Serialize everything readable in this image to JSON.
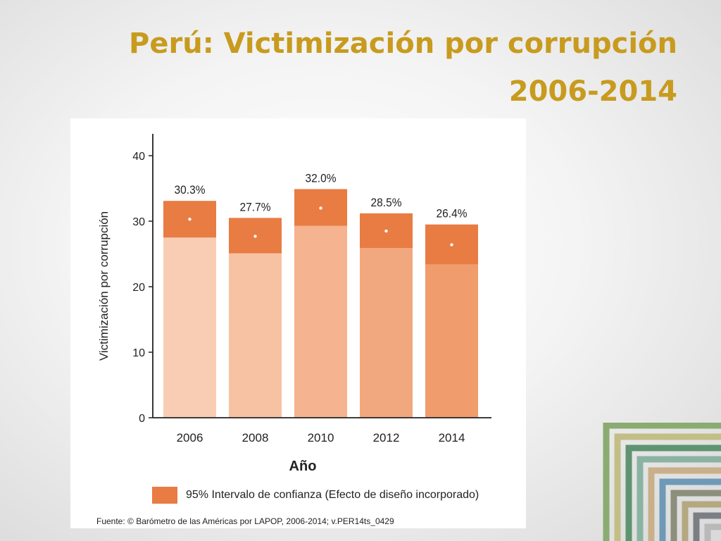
{
  "slide": {
    "title_line1": "Perú: Victimización por corrupción",
    "title_line2": "2006-2014"
  },
  "chart_data": {
    "type": "bar",
    "categories": [
      "2006",
      "2008",
      "2010",
      "2012",
      "2014"
    ],
    "values": [
      30.3,
      27.7,
      32.0,
      28.5,
      26.4
    ],
    "value_labels": [
      "30.3%",
      "27.7%",
      "32.0%",
      "28.5%",
      "26.4%"
    ],
    "ci_lower": [
      27.5,
      25.1,
      29.3,
      25.9,
      23.4
    ],
    "ci_upper": [
      33.1,
      30.5,
      34.9,
      31.2,
      29.5
    ],
    "bar_colors": [
      "#f9cdb3",
      "#f7c2a3",
      "#f5b38f",
      "#f2a87e",
      "#f09c6d"
    ],
    "ci_color": "#e87c43",
    "xlabel": "Año",
    "ylabel": "Victimización por corrupción",
    "ylim": [
      0,
      40
    ],
    "yticks": [
      0,
      10,
      20,
      30,
      40
    ],
    "legend": "95% Intervalo de confianza (Efecto de diseño incorporado)",
    "source": "Fuente: © Barómetro de las Américas por LAPOP, 2006-2014; v.PER14ts_0429"
  }
}
